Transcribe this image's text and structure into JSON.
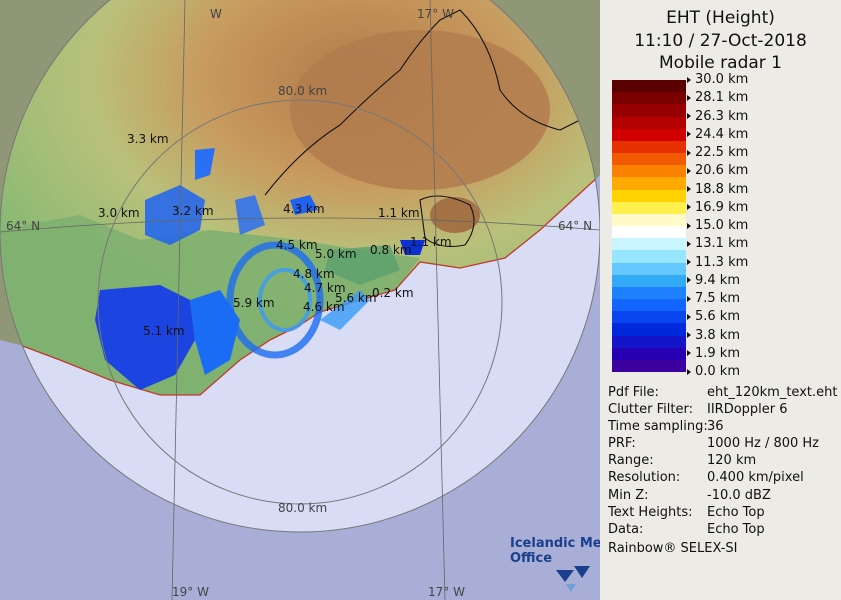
{
  "header": {
    "title": "EHT (Height)",
    "datetime": "11:10 / 27-Oct-2018",
    "radar": "Mobile radar 1"
  },
  "legend": {
    "ticks": [
      "30.0 km",
      "28.1 km",
      "26.3 km",
      "24.4 km",
      "22.5 km",
      "20.6 km",
      "18.8 km",
      "16.9 km",
      "15.0 km",
      "13.1 km",
      "11.3 km",
      "9.4 km",
      "7.5 km",
      "5.6 km",
      "3.8 km",
      "1.9 km",
      "0.0 km"
    ],
    "colors": [
      "#5a0000",
      "#7a0000",
      "#960000",
      "#b40000",
      "#d00000",
      "#e63000",
      "#f25a00",
      "#fa8200",
      "#ffaa00",
      "#ffd200",
      "#fff050",
      "#fffac8",
      "#ffffff",
      "#c8f5ff",
      "#96e6ff",
      "#64c8ff",
      "#32aaf5",
      "#1e82ff",
      "#1464ff",
      "#0a46f0",
      "#0028dc",
      "#1414c8",
      "#2800b4",
      "#3c00a0"
    ]
  },
  "metadata": [
    {
      "label": "Pdf File:",
      "value": "eht_120km_text.eht"
    },
    {
      "label": "Clutter Filter:",
      "value": "IIRDoppler 6"
    },
    {
      "label": "Time sampling:",
      "value": "36"
    },
    {
      "label": "PRF:",
      "value": "1000 Hz / 800 Hz"
    },
    {
      "label": "Range:",
      "value": "120 km"
    },
    {
      "label": "Resolution:",
      "value": "0.400 km/pixel"
    },
    {
      "label": "Min Z:",
      "value": "-10.0 dBZ"
    },
    {
      "label": "Text Heights:",
      "value": "Echo Top"
    },
    {
      "label": "Data:",
      "value": "Echo Top"
    }
  ],
  "footer": "Rainbow® SELEX-SI",
  "map": {
    "grid_labels": {
      "lon_top_left": "W",
      "lon_top_right": "17° W",
      "lon_bottom_left": "19° W",
      "lon_bottom_right": "17° W",
      "lat_left": "64° N",
      "lat_right": "64° N",
      "ring_top": "80.0 km",
      "ring_bottom": "80.0 km"
    },
    "height_labels": [
      "3.3 km",
      "3.0 km",
      "3.2 km",
      "4.3 km",
      "1.1 km",
      "4.5 km",
      "5.0 km",
      "0.8 km",
      "1.1 km",
      "4.8 km",
      "4.7 km",
      "5.6 km",
      "0.2 km",
      "5.9 km",
      "4.6 km",
      "5.1 km"
    ],
    "logo_line1": "Icelandic Met",
    "logo_line2": "Office"
  }
}
